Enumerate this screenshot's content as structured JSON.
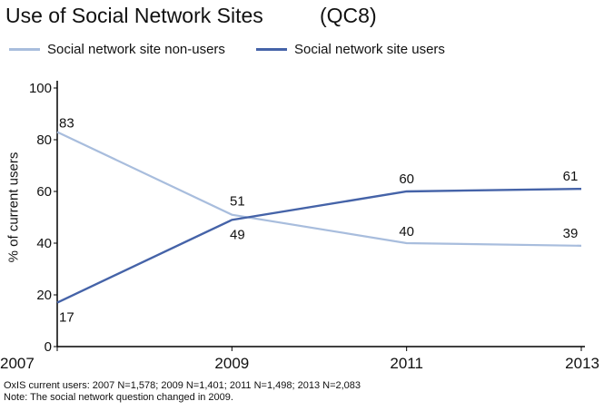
{
  "header": {
    "title": "Use of Social Network Sites",
    "code": "(QC8)"
  },
  "footer": {
    "note1": "OxIS current users: 2007 N=1,578; 2009 N=1,401; 2011 N=1,498; 2013 N=2,083",
    "note2": "Note: The social network question changed in 2009."
  },
  "chart_data": {
    "type": "line",
    "title": "Use of Social Network Sites",
    "ylabel": "% of current users",
    "xlabel": "",
    "x": [
      "2007",
      "2009",
      "2011",
      "2013"
    ],
    "ylim": [
      0,
      100
    ],
    "yticks": [
      "0",
      "20",
      "40",
      "60",
      "80",
      "100"
    ],
    "grid": false,
    "legend": "top",
    "series": [
      {
        "name": "Social network site non-users",
        "values": [
          83,
          51,
          40,
          39
        ],
        "labels": [
          "83",
          "51",
          "40",
          "39"
        ],
        "color": "#a8bddd"
      },
      {
        "name": "Social network site users",
        "values": [
          17,
          49,
          60,
          61
        ],
        "labels": [
          "17",
          "49",
          "60",
          "61"
        ],
        "color": "#4563a8"
      }
    ]
  }
}
